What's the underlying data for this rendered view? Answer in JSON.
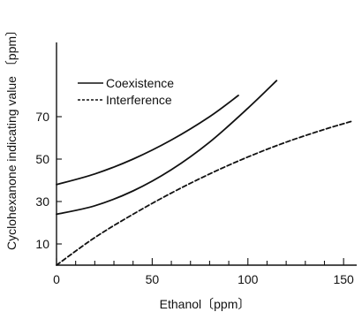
{
  "chart_data": {
    "type": "line",
    "title": "",
    "xlabel": "Ethanol〔ppm〕",
    "ylabel": "Cyclohexanone indicating value 〔ppm〕",
    "xlim": [
      0,
      155
    ],
    "ylim": [
      0,
      105
    ],
    "x_ticks": [
      0,
      50,
      100,
      150
    ],
    "y_ticks": [
      10,
      30,
      50,
      70
    ],
    "x_minor_step": 10,
    "legend_position": "top-left",
    "series": [
      {
        "name": "Coexistence",
        "style": "solid",
        "points": [
          [
            0,
            38
          ],
          [
            20,
            43
          ],
          [
            40,
            50
          ],
          [
            60,
            59
          ],
          [
            80,
            70
          ],
          [
            95,
            80
          ]
        ]
      },
      {
        "name": "",
        "style": "solid",
        "points": [
          [
            0,
            24
          ],
          [
            20,
            28
          ],
          [
            40,
            35
          ],
          [
            60,
            45
          ],
          [
            80,
            58
          ],
          [
            100,
            74
          ],
          [
            115,
            87
          ]
        ]
      },
      {
        "name": "Interference",
        "style": "dashed",
        "points": [
          [
            0,
            0
          ],
          [
            20,
            13
          ],
          [
            40,
            24
          ],
          [
            60,
            34
          ],
          [
            80,
            43
          ],
          [
            100,
            51
          ],
          [
            120,
            58
          ],
          [
            140,
            64
          ],
          [
            155,
            68
          ]
        ]
      }
    ]
  }
}
